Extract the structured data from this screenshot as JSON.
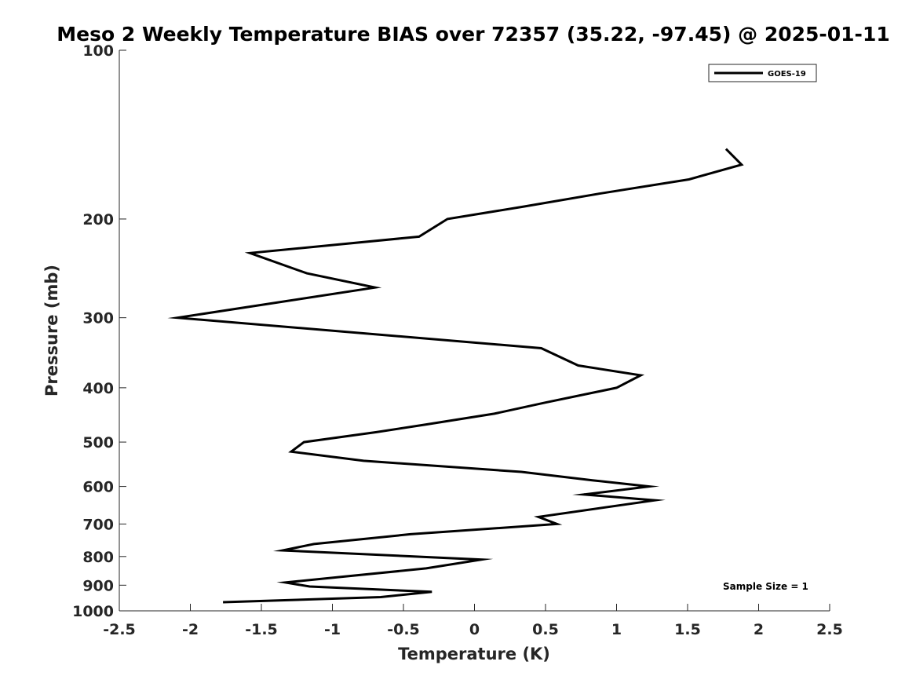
{
  "chart_data": {
    "type": "line",
    "title": "Meso 2 Weekly Temperature BIAS over 72357 (35.22, -97.45) @ 2025-01-11",
    "xlabel": "Temperature (K)",
    "ylabel": "Pressure (mb)",
    "xlim": [
      -2.5,
      2.5
    ],
    "ylim": [
      100,
      1000
    ],
    "y_scale": "log",
    "y_reversed": true,
    "grid": false,
    "legend_position": "top-right",
    "x_ticks": [
      {
        "value": -2.5,
        "label": "-2.5"
      },
      {
        "value": -2,
        "label": "-2"
      },
      {
        "value": -1.5,
        "label": "-1.5"
      },
      {
        "value": -1,
        "label": "-1"
      },
      {
        "value": -0.5,
        "label": "-0.5"
      },
      {
        "value": 0,
        "label": "0"
      },
      {
        "value": 0.5,
        "label": "0.5"
      },
      {
        "value": 1,
        "label": "1"
      },
      {
        "value": 1.5,
        "label": "1.5"
      },
      {
        "value": 2,
        "label": "2"
      },
      {
        "value": 2.5,
        "label": "2.5"
      }
    ],
    "y_ticks": [
      {
        "value": 100,
        "label": "100"
      },
      {
        "value": 200,
        "label": "200"
      },
      {
        "value": 300,
        "label": "300"
      },
      {
        "value": 400,
        "label": "400"
      },
      {
        "value": 500,
        "label": "500"
      },
      {
        "value": 600,
        "label": "600"
      },
      {
        "value": 700,
        "label": "700"
      },
      {
        "value": 800,
        "label": "800"
      },
      {
        "value": 900,
        "label": "900"
      },
      {
        "value": 1000,
        "label": "1000"
      }
    ],
    "series": [
      {
        "name": "GOES-19",
        "color": "#000000",
        "points": [
          {
            "x": 1.77,
            "p": 150
          },
          {
            "x": 1.88,
            "p": 160
          },
          {
            "x": 1.51,
            "p": 170
          },
          {
            "x": 0.89,
            "p": 180
          },
          {
            "x": 0.35,
            "p": 190
          },
          {
            "x": -0.19,
            "p": 200
          },
          {
            "x": -0.39,
            "p": 215
          },
          {
            "x": -1.58,
            "p": 230
          },
          {
            "x": -1.18,
            "p": 250
          },
          {
            "x": -0.7,
            "p": 265
          },
          {
            "x": -2.09,
            "p": 300
          },
          {
            "x": 0.47,
            "p": 340
          },
          {
            "x": 0.73,
            "p": 365
          },
          {
            "x": 1.17,
            "p": 380
          },
          {
            "x": 1.0,
            "p": 400
          },
          {
            "x": 0.5,
            "p": 425
          },
          {
            "x": 0.14,
            "p": 445
          },
          {
            "x": -0.34,
            "p": 465
          },
          {
            "x": -0.69,
            "p": 480
          },
          {
            "x": -1.2,
            "p": 500
          },
          {
            "x": -1.29,
            "p": 520
          },
          {
            "x": -0.78,
            "p": 540
          },
          {
            "x": 0.33,
            "p": 565
          },
          {
            "x": 0.83,
            "p": 585
          },
          {
            "x": 1.23,
            "p": 600
          },
          {
            "x": 0.77,
            "p": 620
          },
          {
            "x": 1.27,
            "p": 635
          },
          {
            "x": 0.45,
            "p": 680
          },
          {
            "x": 0.58,
            "p": 700
          },
          {
            "x": -0.45,
            "p": 730
          },
          {
            "x": -1.13,
            "p": 760
          },
          {
            "x": -1.35,
            "p": 780
          },
          {
            "x": 0.05,
            "p": 810
          },
          {
            "x": -0.34,
            "p": 840
          },
          {
            "x": -0.94,
            "p": 870
          },
          {
            "x": -1.33,
            "p": 890
          },
          {
            "x": -1.16,
            "p": 905
          },
          {
            "x": -0.3,
            "p": 925
          },
          {
            "x": -0.66,
            "p": 945
          },
          {
            "x": -1.77,
            "p": 965
          }
        ]
      }
    ],
    "annotations": [
      {
        "text": "Sample Size = 1"
      }
    ]
  }
}
